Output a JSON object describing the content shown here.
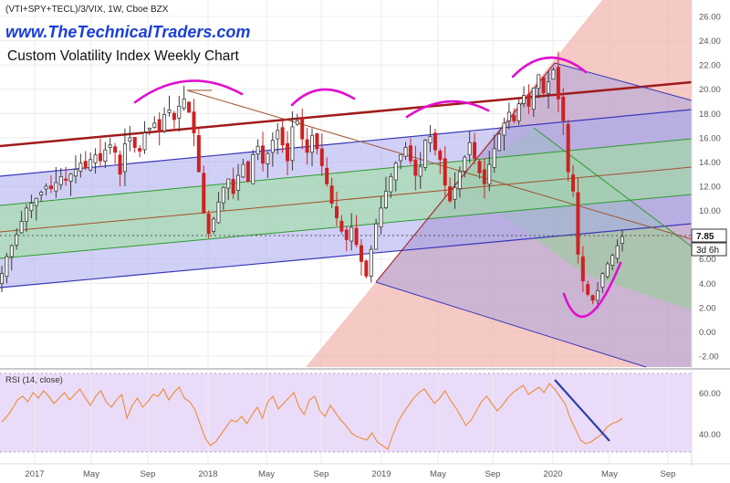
{
  "header": {
    "symbol_line": "(VTI+SPY+TECL)/3/VIX, 1W, Cboe BZX",
    "watermark": "www.TheTechnicalTraders.com",
    "title": "Custom Volatility Index Weekly Chart"
  },
  "price_axis": {
    "ticks": [
      "26.00",
      "24.00",
      "22.00",
      "20.00",
      "18.00",
      "16.00",
      "14.00",
      "12.00",
      "10.00",
      "8.00",
      "6.00",
      "4.00",
      "2.00",
      "0.00",
      "-2.00"
    ],
    "last_price": "7.85",
    "countdown": "3d 6h"
  },
  "rsi_panel": {
    "label": "RSI (14, close)",
    "ticks": [
      "60.00",
      "40.00"
    ]
  },
  "time_axis": {
    "labels": [
      "2017",
      "May",
      "Sep",
      "2018",
      "May",
      "Sep",
      "2019",
      "May",
      "Sep",
      "2020",
      "May",
      "Sep"
    ]
  },
  "colors": {
    "up": "#3a3a3a",
    "down": "#cc2222",
    "rsi_line": "#f08a3c",
    "rsi_bg": "#eadcf8",
    "pitchfork_outer": "#7f7fe0",
    "pitchfork_green": "#7fd07f",
    "median_line": "#a0522d",
    "resistance": "#a11a1a",
    "arc_marker": "#e010d0",
    "fan_red": "#f1b7b0",
    "watermark": "#1a3fd8"
  },
  "chart_data": {
    "type": "candlestick",
    "x_range": [
      "2016-10",
      "2020-10"
    ],
    "y_range": [
      -2.5,
      26.5
    ],
    "ohlc_weekly_close": [
      4.8,
      6.2,
      7.1,
      8.0,
      9.1,
      10.2,
      10.6,
      11.0,
      11.5,
      12.0,
      11.8,
      12.3,
      12.8,
      12.5,
      13.0,
      13.4,
      13.9,
      13.5,
      14.2,
      14.6,
      14.1,
      15.0,
      15.4,
      14.8,
      13.0,
      15.5,
      16.0,
      15.2,
      14.9,
      16.4,
      16.8,
      17.2,
      16.5,
      17.9,
      18.3,
      17.5,
      18.6,
      19.2,
      18.1,
      16.4,
      13.2,
      9.8,
      8.1,
      9.3,
      10.7,
      11.9,
      12.6,
      11.4,
      12.9,
      13.8,
      12.4,
      14.6,
      15.3,
      13.9,
      14.7,
      15.8,
      16.6,
      15.4,
      14.1,
      16.9,
      17.4,
      15.9,
      14.8,
      16.2,
      15.1,
      13.7,
      12.2,
      10.6,
      9.4,
      8.3,
      7.6,
      8.6,
      7.2,
      5.8,
      4.6,
      6.8,
      8.9,
      10.2,
      11.6,
      12.8,
      13.9,
      14.6,
      15.2,
      14.1,
      12.9,
      13.6,
      15.8,
      16.1,
      15.0,
      14.2,
      12.1,
      10.8,
      11.9,
      13.2,
      14.4,
      15.6,
      14.3,
      13.1,
      12.2,
      13.8,
      15.1,
      16.3,
      17.2,
      18.1,
      17.4,
      18.8,
      19.5,
      18.6,
      20.1,
      21.2,
      19.7,
      20.6,
      21.6,
      19.2,
      17.4,
      13.2,
      11.6,
      6.4,
      4.2,
      3.1,
      2.6,
      3.4,
      4.8,
      5.6,
      6.3,
      7.1,
      7.85
    ],
    "rsi_values": [
      44,
      47,
      51,
      56,
      58,
      55,
      60,
      57,
      61,
      58,
      54,
      57,
      60,
      56,
      59,
      62,
      57,
      53,
      58,
      61,
      55,
      52,
      56,
      59,
      46,
      53,
      57,
      52,
      55,
      59,
      58,
      62,
      56,
      60,
      63,
      57,
      55,
      51,
      43,
      35,
      31,
      33,
      37,
      41,
      45,
      44,
      47,
      43,
      48,
      52,
      46,
      55,
      58,
      51,
      54,
      57,
      60,
      52,
      48,
      56,
      58,
      50,
      47,
      53,
      49,
      45,
      42,
      38,
      36,
      35,
      34,
      38,
      33,
      31,
      29,
      37,
      44,
      49,
      53,
      57,
      60,
      62,
      58,
      54,
      57,
      61,
      56,
      52,
      47,
      42,
      45,
      50,
      55,
      58,
      54,
      50,
      53,
      57,
      60,
      62,
      64,
      59,
      61,
      63,
      60,
      65,
      62,
      58,
      54,
      46,
      40,
      34,
      32,
      33,
      35,
      37,
      41,
      43,
      44,
      46
    ],
    "rsi_ylim": [
      28,
      70
    ],
    "annotations": [
      "rsi-divergence-trendline",
      "price-top-arcs",
      "price-bottom-arc",
      "pitchfork-channels"
    ]
  }
}
